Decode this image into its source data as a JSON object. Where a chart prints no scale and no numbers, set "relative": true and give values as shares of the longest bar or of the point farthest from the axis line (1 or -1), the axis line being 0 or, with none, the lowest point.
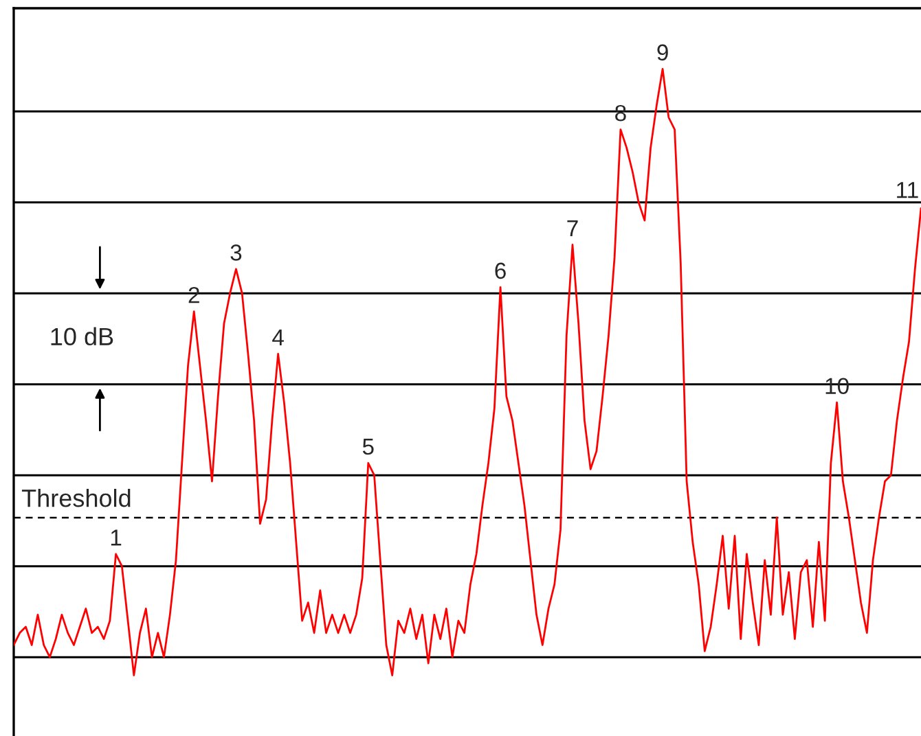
{
  "chart_data": {
    "type": "line",
    "relative": true,
    "color": "#ff0000",
    "categories": [
      null,
      null,
      null,
      null,
      null,
      null,
      null,
      null,
      null,
      null,
      null,
      null,
      null,
      null,
      null,
      null,
      null,
      null,
      null,
      null,
      null,
      null,
      null,
      null,
      null,
      null,
      null,
      null,
      null,
      null,
      null,
      null,
      null,
      null,
      null,
      null,
      null,
      null,
      null,
      null,
      null,
      null,
      null,
      null,
      null,
      null,
      null,
      null,
      null,
      null,
      null,
      null,
      null,
      null,
      null,
      null,
      null,
      null,
      null,
      null,
      null,
      null,
      null,
      null,
      null,
      null,
      null,
      null,
      null,
      null,
      null,
      null,
      null,
      null,
      null,
      null,
      null,
      null,
      null,
      null,
      null,
      null,
      null,
      null,
      null,
      null,
      null,
      null,
      null,
      null,
      null,
      null,
      null,
      null,
      null,
      null,
      null,
      null,
      null,
      null,
      null,
      null,
      null,
      null,
      null,
      null,
      null,
      null,
      null,
      null,
      null,
      null,
      null,
      null,
      null,
      null,
      null,
      null,
      null,
      null,
      null,
      null,
      null,
      null,
      null,
      null,
      null,
      null,
      null,
      null,
      null,
      null,
      null,
      null,
      null,
      null,
      null,
      null,
      null,
      null,
      null,
      null,
      null,
      null,
      null,
      null,
      null,
      null,
      null,
      null,
      null,
      null
    ],
    "values": [
      0.05,
      0.07,
      0.08,
      0.05,
      0.1,
      0.05,
      0.03,
      0.06,
      0.1,
      0.07,
      0.05,
      0.08,
      0.11,
      0.07,
      0.08,
      0.06,
      0.09,
      0.2,
      0.18,
      0.09,
      0.0,
      0.07,
      0.11,
      0.03,
      0.07,
      0.03,
      0.1,
      0.19,
      0.35,
      0.51,
      0.6,
      0.51,
      0.42,
      0.32,
      0.46,
      0.58,
      0.63,
      0.67,
      0.63,
      0.53,
      0.42,
      0.25,
      0.29,
      0.42,
      0.53,
      0.45,
      0.35,
      0.22,
      0.09,
      0.12,
      0.07,
      0.14,
      0.07,
      0.1,
      0.07,
      0.1,
      0.07,
      0.1,
      0.16,
      0.35,
      0.33,
      0.19,
      0.05,
      0.0,
      0.09,
      0.07,
      0.11,
      0.06,
      0.1,
      0.02,
      0.1,
      0.06,
      0.11,
      0.03,
      0.09,
      0.07,
      0.15,
      0.2,
      0.28,
      0.35,
      0.44,
      0.64,
      0.46,
      0.42,
      0.35,
      0.28,
      0.19,
      0.1,
      0.05,
      0.11,
      0.15,
      0.24,
      0.56,
      0.71,
      0.58,
      0.42,
      0.34,
      0.37,
      0.46,
      0.56,
      0.69,
      0.9,
      0.87,
      0.83,
      0.78,
      0.75,
      0.87,
      0.94,
      1.0,
      0.92,
      0.9,
      0.68,
      0.32,
      0.22,
      0.15,
      0.04,
      0.08,
      0.15,
      0.23,
      0.11,
      0.23,
      0.06,
      0.2,
      0.12,
      0.05,
      0.19,
      0.1,
      0.26,
      0.1,
      0.17,
      0.06,
      0.17,
      0.19,
      0.08,
      0.22,
      0.09,
      0.35,
      0.45,
      0.32,
      0.26,
      0.19,
      0.12,
      0.07,
      0.19,
      0.26,
      0.32,
      0.33,
      0.42,
      0.49,
      0.55,
      0.67,
      0.77
    ],
    "ref_lines": [
      {
        "axis": "y",
        "value": 0.26,
        "label": "Threshold",
        "line_style": "dashed",
        "color": "#000000"
      },
      {
        "axis": "y",
        "value": 0.03,
        "color": "#000000"
      },
      {
        "axis": "y",
        "value": 0.18,
        "color": "#000000"
      },
      {
        "axis": "y",
        "value": 0.33,
        "color": "#000000"
      },
      {
        "axis": "y",
        "value": 0.48,
        "color": "#000000"
      },
      {
        "axis": "y",
        "value": 0.63,
        "color": "#000000"
      },
      {
        "axis": "y",
        "value": 0.78,
        "color": "#000000"
      },
      {
        "axis": "y",
        "value": 0.93,
        "color": "#000000"
      }
    ],
    "annotations": [
      {
        "text": "1",
        "y": 0.2
      },
      {
        "text": "2",
        "y": 0.6
      },
      {
        "text": "3",
        "y": 0.67
      },
      {
        "text": "4",
        "y": 0.53
      },
      {
        "text": "5",
        "y": 0.35
      },
      {
        "text": "6",
        "y": 0.64
      },
      {
        "text": "7",
        "y": 0.71
      },
      {
        "text": "8",
        "y": 0.9
      },
      {
        "text": "9",
        "y": 1.0
      },
      {
        "text": "10",
        "y": 0.45
      },
      {
        "text": "11",
        "y": 0.77
      },
      "10 dB"
    ]
  }
}
